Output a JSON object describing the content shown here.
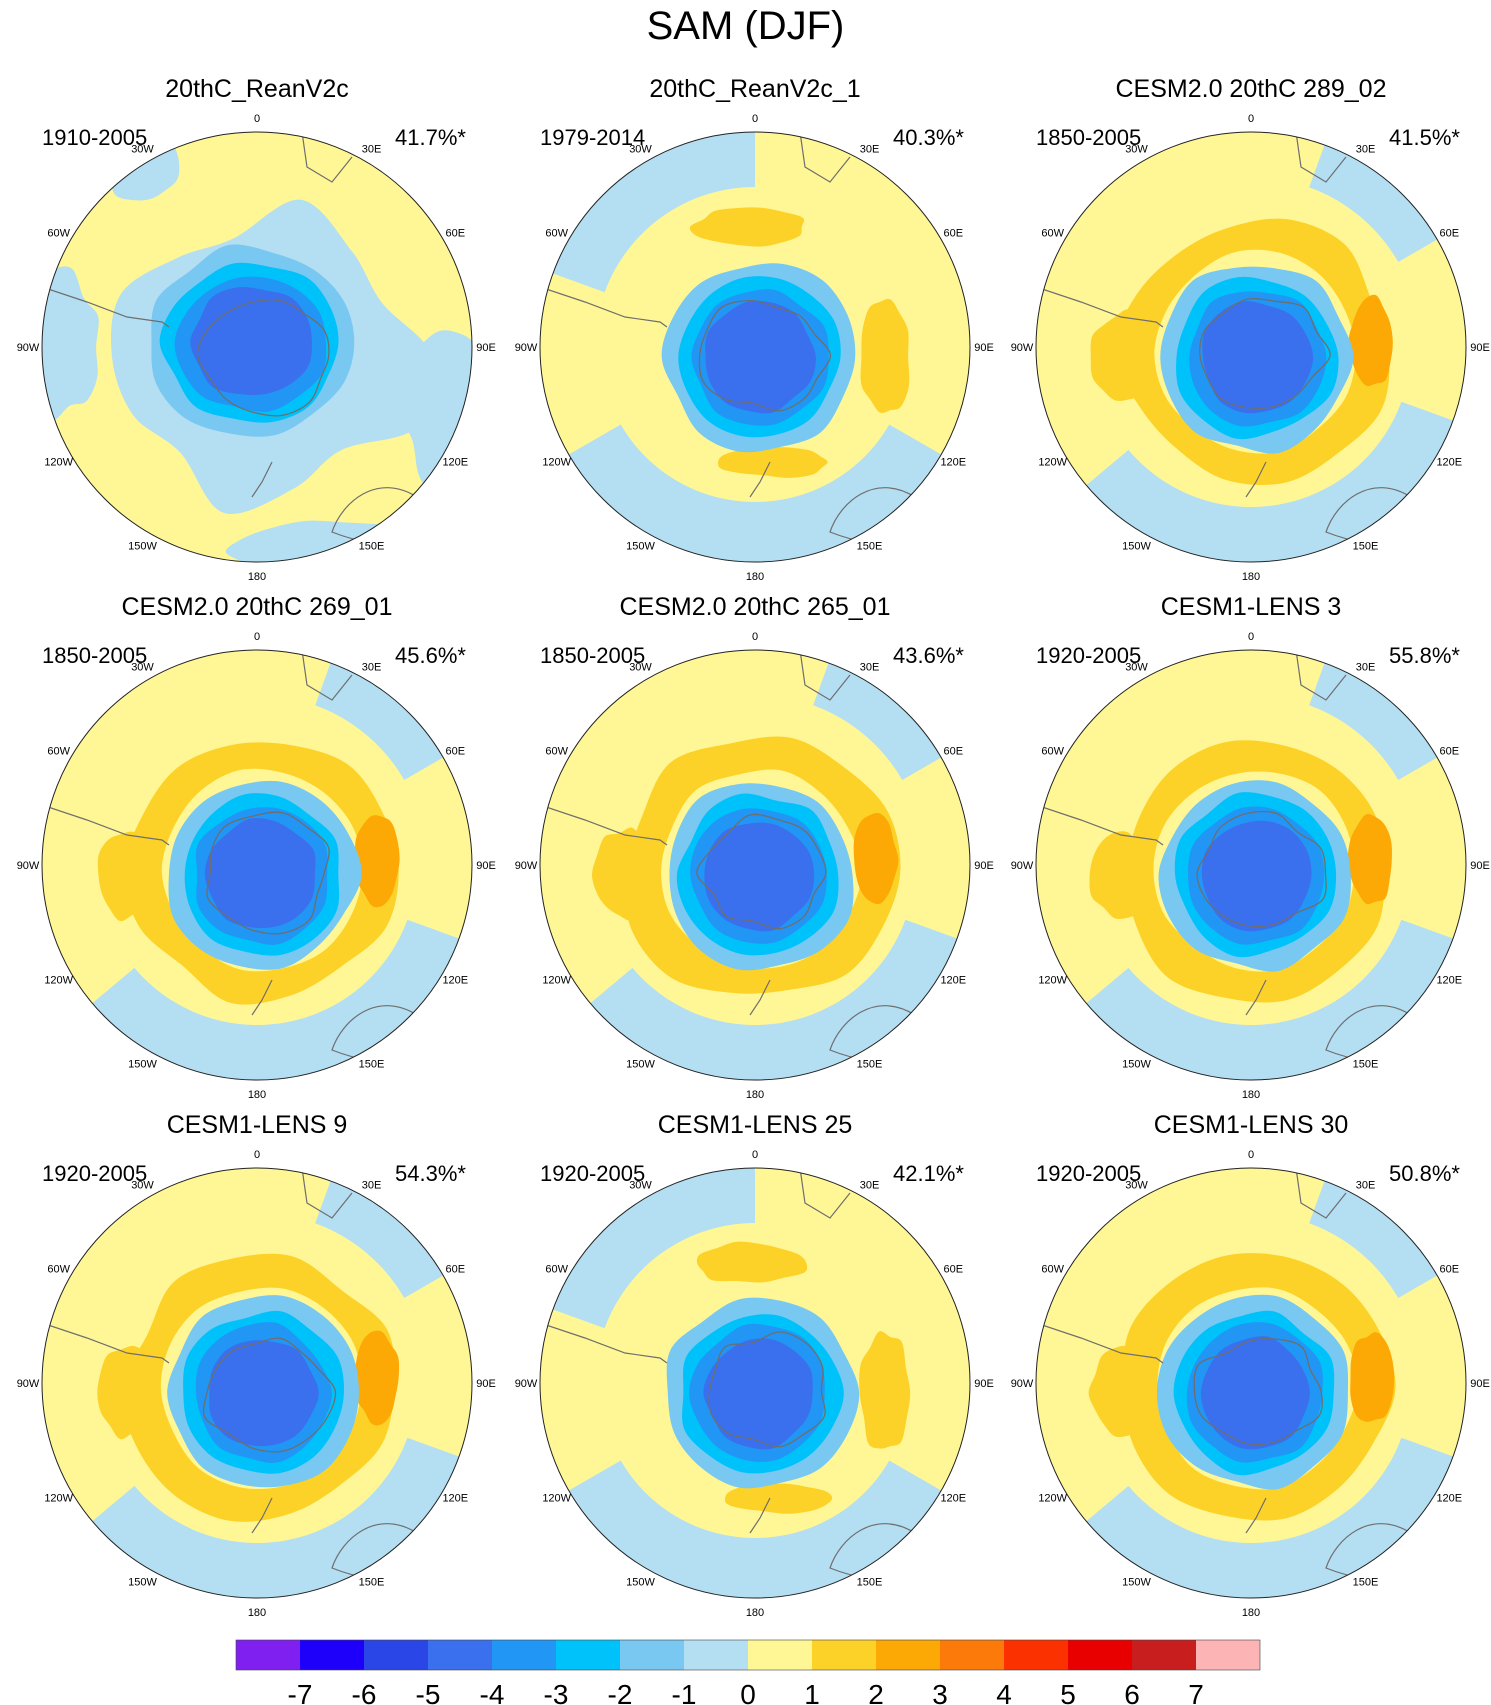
{
  "figure": {
    "title": "SAM (DJF)"
  },
  "longitude_labels": [
    "0",
    "30E",
    "60E",
    "90E",
    "120E",
    "150E",
    "180",
    "150W",
    "120W",
    "90W",
    "60W",
    "30W"
  ],
  "colors": {
    "map_background": "#fff796",
    "coastline": "#6e6e6e",
    "ring_outline": "#222222"
  },
  "panels": [
    {
      "title": "20thC_ReanV2c",
      "period": "1910-2005",
      "variance": "41.7%*",
      "pattern": "a"
    },
    {
      "title": "20thC_ReanV2c_1",
      "period": "1979-2014",
      "variance": "40.3%*",
      "pattern": "b"
    },
    {
      "title": "CESM2.0 20thC 289_02",
      "period": "1850-2005",
      "variance": "41.5%*",
      "pattern": "c"
    },
    {
      "title": "CESM2.0 20thC 269_01",
      "period": "1850-2005",
      "variance": "45.6%*",
      "pattern": "c"
    },
    {
      "title": "CESM2.0 20thC 265_01",
      "period": "1850-2005",
      "variance": "43.6%*",
      "pattern": "c"
    },
    {
      "title": "CESM1-LENS 3",
      "period": "1920-2005",
      "variance": "55.8%*",
      "pattern": "c"
    },
    {
      "title": "CESM1-LENS 9",
      "period": "1920-2005",
      "variance": "54.3%*",
      "pattern": "c"
    },
    {
      "title": "CESM1-LENS 25",
      "period": "1920-2005",
      "variance": "42.1%*",
      "pattern": "b"
    },
    {
      "title": "CESM1-LENS 30",
      "period": "1920-2005",
      "variance": "50.8%*",
      "pattern": "c"
    }
  ],
  "colorbar": {
    "ticks": [
      "-7",
      "-6",
      "-5",
      "-4",
      "-3",
      "-2",
      "-1",
      "0",
      "1",
      "2",
      "3",
      "4",
      "5",
      "6",
      "7"
    ],
    "colors": [
      "#7f1ff0",
      "#1e00fa",
      "#2a46e6",
      "#3a70ee",
      "#2196f4",
      "#00c2fa",
      "#78c8f2",
      "#b4def2",
      "#fff796",
      "#fdd228",
      "#fca805",
      "#fb7a0a",
      "#fb3200",
      "#e80000",
      "#c81e1e",
      "#fcb4b4"
    ]
  }
}
